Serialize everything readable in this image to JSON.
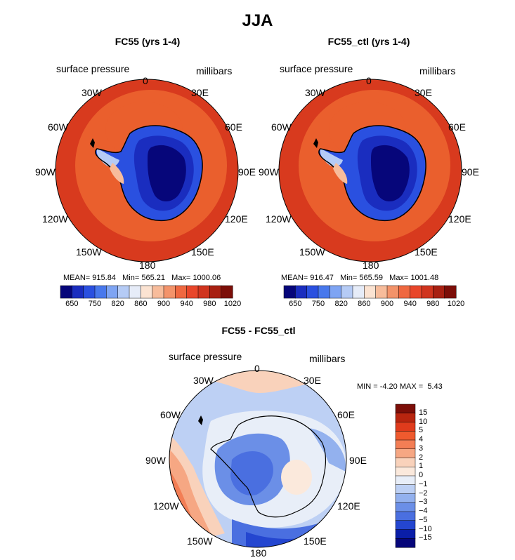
{
  "title": "JJA",
  "panel_left": {
    "title": "FC55 (yrs 1-4)",
    "field_label": "surface pressure",
    "units": "millibars",
    "lon_labels": [
      "0",
      "30E",
      "60E",
      "90E",
      "120E",
      "150E",
      "180",
      "150W",
      "120W",
      "90W",
      "60W",
      "30W"
    ],
    "stats": {
      "mean_label": "MEAN=",
      "mean": "915.84",
      "min_label": "Min=",
      "min": "565.21",
      "max_label": "Max=",
      "max": "1000.06"
    }
  },
  "panel_right": {
    "title": "FC55_ctl (yrs 1-4)",
    "field_label": "surface pressure",
    "units": "millibars",
    "lon_labels": [
      "0",
      "30E",
      "60E",
      "90E",
      "120E",
      "150E",
      "180",
      "150W",
      "120W",
      "90W",
      "60W",
      "30W"
    ],
    "stats": {
      "mean_label": "MEAN=",
      "mean": "916.47",
      "min_label": "Min=",
      "min": "565.59",
      "max_label": "Max=",
      "max": "1001.48"
    }
  },
  "colorbar_top": {
    "tick_labels": [
      "650",
      "750",
      "820",
      "860",
      "900",
      "940",
      "980",
      "1020"
    ],
    "colors": [
      "#06067a",
      "#1a2dbf",
      "#2a50e0",
      "#4878ec",
      "#7ea4f3",
      "#b5cbf5",
      "#e6ecf8",
      "#fbe3d2",
      "#f7bc9b",
      "#f3936a",
      "#ef6840",
      "#e8462a",
      "#d0341e",
      "#a82012",
      "#7c0e08"
    ]
  },
  "panel_diff": {
    "title": "FC55 - FC55_ctl",
    "field_label": "surface pressure",
    "units": "millibars",
    "lon_labels": [
      "0",
      "30E",
      "60E",
      "90E",
      "120E",
      "150E",
      "180",
      "150W",
      "120W",
      "90W",
      "60W",
      "30W"
    ],
    "minmax": {
      "min_label": "MIN =",
      "min": "-4.20",
      "max_label": "MAX =",
      "max": "5.43"
    }
  },
  "colorbar_diff": {
    "tick_labels": [
      "15",
      "10",
      "5",
      "4",
      "3",
      "2",
      "1",
      "0",
      "−1",
      "−2",
      "−3",
      "−4",
      "−5",
      "−10",
      "−15"
    ],
    "colors": [
      "#7c0e08",
      "#b8250f",
      "#e03b1c",
      "#ef5a2e",
      "#f37e55",
      "#f6a783",
      "#f9d2bb",
      "#fbe9dc",
      "#e8eef8",
      "#bdd0f4",
      "#93b1ee",
      "#6b8fe7",
      "#4a6fe0",
      "#2446d0",
      "#0a1ea8",
      "#06067a"
    ]
  }
}
